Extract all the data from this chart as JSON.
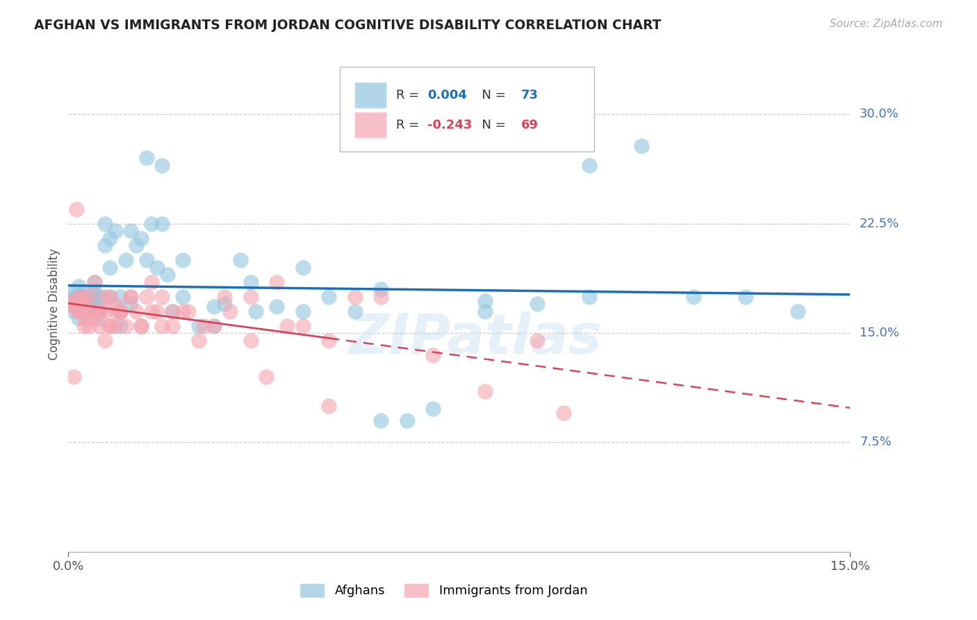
{
  "title": "AFGHAN VS IMMIGRANTS FROM JORDAN COGNITIVE DISABILITY CORRELATION CHART",
  "source": "Source: ZipAtlas.com",
  "ylabel": "Cognitive Disability",
  "ytick_labels": [
    "30.0%",
    "22.5%",
    "15.0%",
    "7.5%"
  ],
  "ytick_values": [
    0.3,
    0.225,
    0.15,
    0.075
  ],
  "xmin": 0.0,
  "xmax": 0.15,
  "ymin": 0.0,
  "ymax": 0.34,
  "afghan_R": 0.004,
  "afghan_N": 73,
  "jordan_R": -0.243,
  "jordan_N": 69,
  "afghan_color": "#92c5de",
  "jordan_color": "#f4a4b0",
  "afghan_line_color": "#1a6fba",
  "jordan_line_color": "#d9435a",
  "legend_label_afghan": "Afghans",
  "legend_label_jordan": "Immigrants from Jordan",
  "grid_color": "#cccccc",
  "background_color": "#ffffff",
  "watermark": "ZIPatlas",
  "afghan_x": [
    0.0005,
    0.001,
    0.001,
    0.001,
    0.0015,
    0.002,
    0.002,
    0.002,
    0.002,
    0.0025,
    0.003,
    0.003,
    0.003,
    0.003,
    0.0035,
    0.004,
    0.004,
    0.004,
    0.005,
    0.005,
    0.005,
    0.006,
    0.006,
    0.006,
    0.007,
    0.007,
    0.008,
    0.008,
    0.009,
    0.01,
    0.01,
    0.011,
    0.012,
    0.013,
    0.014,
    0.015,
    0.016,
    0.017,
    0.018,
    0.019,
    0.02,
    0.022,
    0.025,
    0.028,
    0.03,
    0.033,
    0.036,
    0.04,
    0.045,
    0.05,
    0.055,
    0.06,
    0.065,
    0.07,
    0.08,
    0.09,
    0.1,
    0.11,
    0.12,
    0.13,
    0.14,
    0.008,
    0.01,
    0.012,
    0.015,
    0.018,
    0.022,
    0.028,
    0.035,
    0.045,
    0.06,
    0.08,
    0.1
  ],
  "afghan_y": [
    0.17,
    0.175,
    0.178,
    0.165,
    0.172,
    0.175,
    0.182,
    0.168,
    0.16,
    0.17,
    0.165,
    0.172,
    0.178,
    0.165,
    0.175,
    0.172,
    0.168,
    0.165,
    0.175,
    0.185,
    0.178,
    0.16,
    0.168,
    0.175,
    0.225,
    0.21,
    0.215,
    0.195,
    0.22,
    0.175,
    0.165,
    0.2,
    0.22,
    0.21,
    0.215,
    0.2,
    0.225,
    0.195,
    0.225,
    0.19,
    0.165,
    0.175,
    0.155,
    0.168,
    0.17,
    0.2,
    0.165,
    0.168,
    0.165,
    0.175,
    0.165,
    0.18,
    0.09,
    0.098,
    0.172,
    0.17,
    0.265,
    0.278,
    0.175,
    0.175,
    0.165,
    0.175,
    0.155,
    0.17,
    0.27,
    0.265,
    0.2,
    0.155,
    0.185,
    0.195,
    0.09,
    0.165,
    0.175
  ],
  "jordan_x": [
    0.0005,
    0.001,
    0.001,
    0.0015,
    0.002,
    0.002,
    0.002,
    0.003,
    0.003,
    0.003,
    0.004,
    0.004,
    0.005,
    0.005,
    0.006,
    0.006,
    0.007,
    0.007,
    0.008,
    0.008,
    0.009,
    0.009,
    0.01,
    0.01,
    0.011,
    0.012,
    0.013,
    0.014,
    0.015,
    0.016,
    0.017,
    0.018,
    0.02,
    0.022,
    0.025,
    0.028,
    0.031,
    0.035,
    0.038,
    0.042,
    0.001,
    0.002,
    0.003,
    0.004,
    0.005,
    0.006,
    0.007,
    0.008,
    0.009,
    0.01,
    0.012,
    0.014,
    0.016,
    0.018,
    0.02,
    0.023,
    0.026,
    0.03,
    0.035,
    0.04,
    0.045,
    0.05,
    0.06,
    0.07,
    0.08,
    0.09,
    0.095,
    0.05,
    0.055
  ],
  "jordan_y": [
    0.17,
    0.172,
    0.168,
    0.235,
    0.175,
    0.165,
    0.172,
    0.16,
    0.155,
    0.168,
    0.175,
    0.165,
    0.185,
    0.16,
    0.165,
    0.155,
    0.175,
    0.165,
    0.175,
    0.155,
    0.165,
    0.155,
    0.165,
    0.165,
    0.155,
    0.175,
    0.165,
    0.155,
    0.175,
    0.165,
    0.165,
    0.155,
    0.165,
    0.165,
    0.145,
    0.155,
    0.165,
    0.145,
    0.12,
    0.155,
    0.12,
    0.165,
    0.175,
    0.155,
    0.165,
    0.165,
    0.145,
    0.155,
    0.17,
    0.165,
    0.175,
    0.155,
    0.185,
    0.175,
    0.155,
    0.165,
    0.155,
    0.175,
    0.175,
    0.185,
    0.155,
    0.145,
    0.175,
    0.135,
    0.11,
    0.145,
    0.095,
    0.1,
    0.175
  ]
}
